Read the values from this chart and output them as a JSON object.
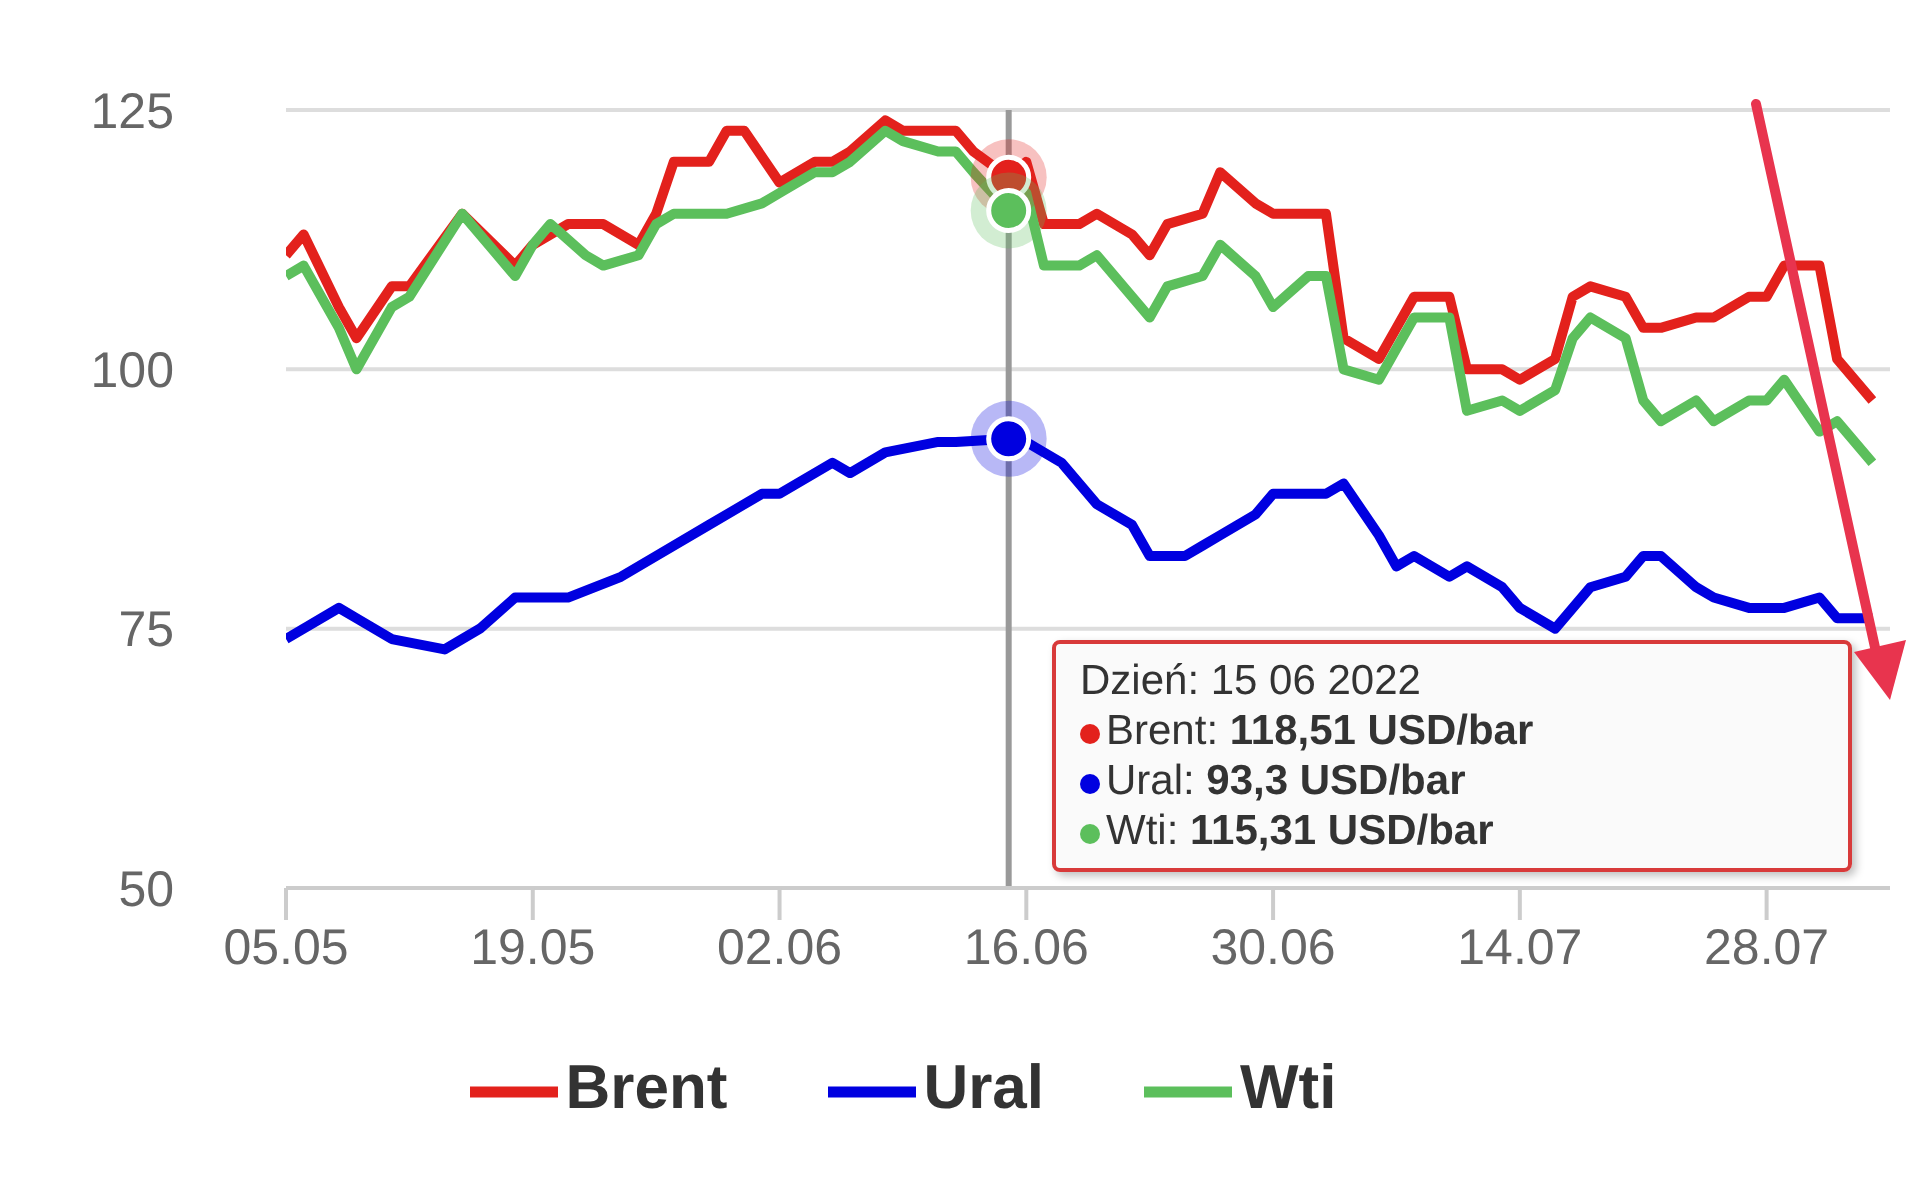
{
  "chart_data": {
    "type": "line",
    "xlim": [
      "2022-05-05",
      "2022-08-04"
    ],
    "xticks": [
      {
        "value": "2022-05-05",
        "label": "05.05"
      },
      {
        "value": "2022-05-19",
        "label": "19.05"
      },
      {
        "value": "2022-06-02",
        "label": "02.06"
      },
      {
        "value": "2022-06-16",
        "label": "16.06"
      },
      {
        "value": "2022-06-30",
        "label": "30.06"
      },
      {
        "value": "2022-07-14",
        "label": "14.07"
      },
      {
        "value": "2022-07-28",
        "label": "28.07"
      }
    ],
    "ylim": [
      50,
      125
    ],
    "yticks": [
      50,
      75,
      100,
      125
    ],
    "grid": "y",
    "legend": "bottom",
    "line_style": "solid",
    "ref_lines": [
      {
        "axis": "x",
        "value": "2022-06-15",
        "color": "#999999"
      }
    ],
    "annotations": [
      "Dzień: 15 06 2022",
      "Brent: 118,51 USD/bar",
      "Ural: 93,3 USD/bar",
      "Wti: 115,31 USD/bar"
    ],
    "series": [
      {
        "name": "Brent",
        "color": "#e3211c",
        "x": [
          "2022-05-05",
          "2022-05-06",
          "2022-05-08",
          "2022-05-09",
          "2022-05-11",
          "2022-05-12",
          "2022-05-15",
          "2022-05-18",
          "2022-05-19",
          "2022-05-21",
          "2022-05-23",
          "2022-05-25",
          "2022-05-26",
          "2022-05-27",
          "2022-05-29",
          "2022-05-30",
          "2022-05-31",
          "2022-06-02",
          "2022-06-04",
          "2022-06-05",
          "2022-06-06",
          "2022-06-08",
          "2022-06-09",
          "2022-06-11",
          "2022-06-12",
          "2022-06-13",
          "2022-06-15",
          "2022-06-16",
          "2022-06-17",
          "2022-06-19",
          "2022-06-20",
          "2022-06-22",
          "2022-06-23",
          "2022-06-24",
          "2022-06-26",
          "2022-06-27",
          "2022-06-29",
          "2022-06-30",
          "2022-07-02",
          "2022-07-03",
          "2022-07-04",
          "2022-07-06",
          "2022-07-07",
          "2022-07-08",
          "2022-07-10",
          "2022-07-11",
          "2022-07-13",
          "2022-07-14",
          "2022-07-16",
          "2022-07-17",
          "2022-07-18",
          "2022-07-20",
          "2022-07-21",
          "2022-07-22",
          "2022-07-24",
          "2022-07-25",
          "2022-07-27",
          "2022-07-28",
          "2022-07-29",
          "2022-07-31",
          "2022-08-01",
          "2022-08-03"
        ],
        "values": [
          111,
          113,
          106,
          103,
          108,
          108,
          115,
          110,
          112,
          114,
          114,
          112,
          115,
          120,
          120,
          123,
          123,
          118,
          120,
          120,
          121,
          124,
          123,
          123,
          123,
          121,
          118.51,
          120,
          114,
          114,
          115,
          113,
          111,
          114,
          115,
          119,
          116,
          115,
          115,
          115,
          103,
          101,
          104,
          107,
          107,
          100,
          100,
          99,
          101,
          107,
          108,
          107,
          104,
          104,
          105,
          105,
          107,
          107,
          110,
          110,
          101,
          97
        ]
      },
      {
        "name": "Ural",
        "color": "#0000e0",
        "x": [
          "2022-05-05",
          "2022-05-08",
          "2022-05-09",
          "2022-05-11",
          "2022-05-14",
          "2022-05-16",
          "2022-05-18",
          "2022-05-21",
          "2022-05-24",
          "2022-05-26",
          "2022-05-29",
          "2022-06-01",
          "2022-06-02",
          "2022-06-05",
          "2022-06-06",
          "2022-06-08",
          "2022-06-11",
          "2022-06-12",
          "2022-06-15",
          "2022-06-16",
          "2022-06-18",
          "2022-06-20",
          "2022-06-22",
          "2022-06-23",
          "2022-06-25",
          "2022-06-26",
          "2022-06-27",
          "2022-06-29",
          "2022-06-30",
          "2022-07-02",
          "2022-07-03",
          "2022-07-04",
          "2022-07-06",
          "2022-07-07",
          "2022-07-08",
          "2022-07-10",
          "2022-07-11",
          "2022-07-13",
          "2022-07-14",
          "2022-07-16",
          "2022-07-17",
          "2022-07-18",
          "2022-07-20",
          "2022-07-21",
          "2022-07-22",
          "2022-07-24",
          "2022-07-25",
          "2022-07-27",
          "2022-07-28",
          "2022-07-29",
          "2022-07-31",
          "2022-08-01",
          "2022-08-03"
        ],
        "values": [
          74,
          77,
          76,
          74,
          73,
          75,
          78,
          78,
          80,
          82,
          85,
          88,
          88,
          91,
          90,
          92,
          93,
          93,
          93.3,
          93,
          91,
          87,
          85,
          82,
          82,
          83,
          84,
          86,
          88,
          88,
          88,
          89,
          84,
          81,
          82,
          80,
          81,
          79,
          77,
          75,
          77,
          79,
          80,
          82,
          82,
          79,
          78,
          77,
          77,
          77,
          78,
          76,
          76
        ]
      },
      {
        "name": "Wti",
        "color": "#5cbf5c",
        "x": [
          "2022-05-05",
          "2022-05-06",
          "2022-05-08",
          "2022-05-09",
          "2022-05-11",
          "2022-05-12",
          "2022-05-15",
          "2022-05-18",
          "2022-05-19",
          "2022-05-20",
          "2022-05-22",
          "2022-05-23",
          "2022-05-25",
          "2022-05-26",
          "2022-05-27",
          "2022-05-29",
          "2022-05-30",
          "2022-06-01",
          "2022-06-02",
          "2022-06-04",
          "2022-06-05",
          "2022-06-06",
          "2022-06-08",
          "2022-06-09",
          "2022-06-11",
          "2022-06-12",
          "2022-06-13",
          "2022-06-15",
          "2022-06-16",
          "2022-06-17",
          "2022-06-19",
          "2022-06-20",
          "2022-06-22",
          "2022-06-23",
          "2022-06-24",
          "2022-06-26",
          "2022-06-27",
          "2022-06-29",
          "2022-06-30",
          "2022-07-02",
          "2022-07-03",
          "2022-07-04",
          "2022-07-06",
          "2022-07-07",
          "2022-07-08",
          "2022-07-10",
          "2022-07-11",
          "2022-07-13",
          "2022-07-14",
          "2022-07-16",
          "2022-07-17",
          "2022-07-18",
          "2022-07-20",
          "2022-07-21",
          "2022-07-22",
          "2022-07-24",
          "2022-07-25",
          "2022-07-27",
          "2022-07-28",
          "2022-07-29",
          "2022-07-31",
          "2022-08-01",
          "2022-08-03"
        ],
        "values": [
          109,
          110,
          104,
          100,
          106,
          107,
          115,
          109,
          112,
          114,
          111,
          110,
          111,
          114,
          115,
          115,
          115,
          116,
          117,
          119,
          119,
          120,
          123,
          122,
          121,
          121,
          119,
          115.31,
          117,
          110,
          110,
          111,
          107,
          105,
          108,
          109,
          112,
          109,
          106,
          109,
          109,
          100,
          99,
          102,
          105,
          105,
          96,
          97,
          96,
          98,
          103,
          105,
          103,
          97,
          95,
          97,
          95,
          97,
          97,
          99,
          94,
          95,
          91
        ]
      }
    ]
  }
}
